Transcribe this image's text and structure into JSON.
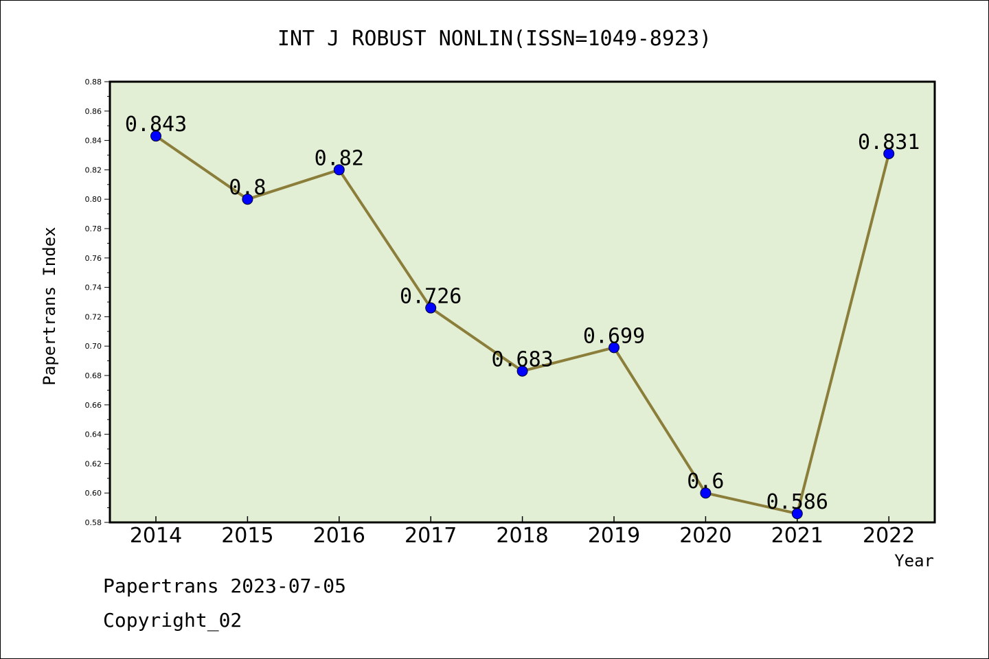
{
  "chart_data": {
    "type": "line",
    "title": "INT J ROBUST NONLIN(ISSN=1049-8923)",
    "xlabel": "Year",
    "ylabel": "Papertrans Index",
    "categories": [
      "2014",
      "2015",
      "2016",
      "2017",
      "2018",
      "2019",
      "2020",
      "2021",
      "2022"
    ],
    "series": [
      {
        "values": [
          0.843,
          0.8,
          0.82,
          0.726,
          0.683,
          0.699,
          0.6,
          0.586,
          0.831
        ]
      }
    ],
    "data_labels": [
      "0.843",
      "0.8",
      "0.82",
      "0.726",
      "0.683",
      "0.699",
      "0.6",
      "0.586",
      "0.831"
    ],
    "ylim": [
      0.58,
      0.88
    ],
    "yticks": [
      "0.58",
      "0.60",
      "0.62",
      "0.64",
      "0.66",
      "0.68",
      "0.70",
      "0.72",
      "0.74",
      "0.76",
      "0.78",
      "0.80",
      "0.82",
      "0.84",
      "0.86",
      "0.88"
    ],
    "grid": false,
    "legend": "none",
    "colors": {
      "plot_background": "#e2efd4",
      "line": "#8b7d3a",
      "marker": "#0000ff"
    }
  },
  "footer": {
    "line1": "Papertrans 2023-07-05",
    "line2": "Copyright_02"
  }
}
